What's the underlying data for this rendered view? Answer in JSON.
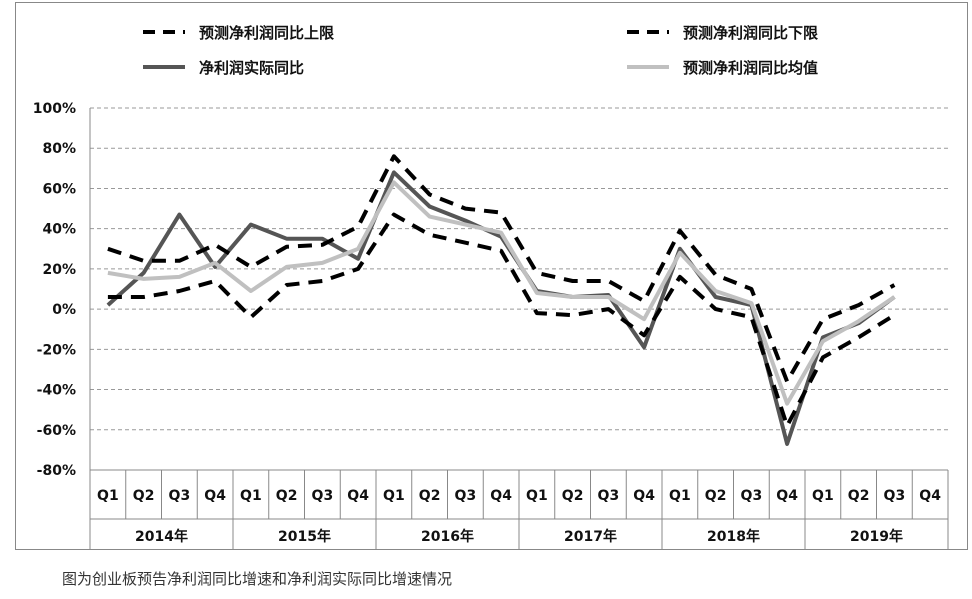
{
  "caption": "图为创业板预告净利润同比增速和净利润实际同比增速情况",
  "chart_data": {
    "type": "line",
    "ylim": [
      -80,
      100
    ],
    "yticks": [
      "100%",
      "80%",
      "60%",
      "40%",
      "20%",
      "0%",
      "-20%",
      "-40%",
      "-60%",
      "-80%"
    ],
    "quarters": [
      "Q1",
      "Q2",
      "Q3",
      "Q4",
      "Q1",
      "Q2",
      "Q3",
      "Q4",
      "Q1",
      "Q2",
      "Q3",
      "Q4",
      "Q1",
      "Q2",
      "Q3",
      "Q4",
      "Q1",
      "Q2",
      "Q3",
      "Q4",
      "Q1",
      "Q2",
      "Q3",
      "Q4"
    ],
    "years": [
      "2014年",
      "2015年",
      "2016年",
      "2017年",
      "2018年",
      "2019年"
    ],
    "legend_placement": "top",
    "grid": "horizontal dashed",
    "series": [
      {
        "name": "预测净利润同比上限",
        "style": "dashed",
        "color": "#000000",
        "values": [
          30,
          24,
          24,
          32,
          21,
          31,
          32,
          41,
          76,
          57,
          50,
          48,
          18,
          14,
          14,
          4,
          39,
          17,
          10,
          -36,
          -5,
          2,
          12,
          null
        ]
      },
      {
        "name": "预测净利润同比下限",
        "style": "dashed",
        "color": "#000000",
        "values": [
          6,
          6,
          9,
          14,
          -4,
          12,
          14,
          20,
          47,
          37,
          33,
          29,
          -2,
          -3,
          0,
          -13,
          16,
          0,
          -4,
          -58,
          -24,
          -14,
          -3,
          null
        ]
      },
      {
        "name": "净利润实际同比",
        "style": "solid",
        "color": "#555555",
        "values": [
          2,
          18,
          47,
          21,
          42,
          35,
          35,
          25,
          68,
          51,
          44,
          36,
          9,
          6,
          7,
          -19,
          30,
          6,
          2,
          -67,
          -14,
          -7,
          6,
          null
        ]
      },
      {
        "name": "预测净利润同比均值",
        "style": "solid",
        "color": "#c0c0c0",
        "values": [
          18,
          15,
          16,
          23,
          9,
          21,
          23,
          30,
          63,
          46,
          42,
          38,
          8,
          6,
          6,
          -5,
          28,
          9,
          3,
          -47,
          -16,
          -6,
          6,
          null
        ]
      }
    ]
  }
}
